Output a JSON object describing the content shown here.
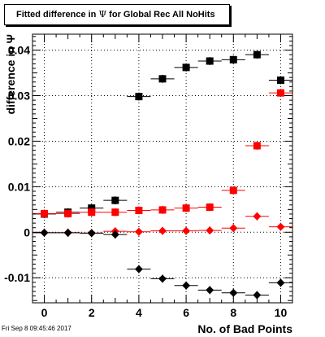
{
  "title": {
    "prefix": "Fitted difference in ",
    "symbol": "Ψ",
    "suffix": "  for Global Rec All NoHits"
  },
  "timestamp": "Fri Sep  8 09:45:46 2017",
  "chart_data": {
    "type": "scatter",
    "title": "Fitted difference in Ψ  for Global Rec All NoHits",
    "xlabel": "No. of Bad Points",
    "ylabel": "difference in Ψ",
    "xlim": [
      -0.5,
      10.5
    ],
    "ylim": [
      -0.0155,
      0.0435
    ],
    "grid": true,
    "legend": "none",
    "x_ticks": [
      0,
      2,
      4,
      6,
      8,
      10
    ],
    "x_tick_labels": [
      "0",
      "2",
      "4",
      "6",
      "8",
      "10"
    ],
    "y_ticks": [
      -0.01,
      0,
      0.01,
      0.02,
      0.03,
      0.04
    ],
    "y_tick_labels": [
      "-0.01",
      "0",
      "0.01",
      "0.02",
      "0.03",
      "0.04"
    ],
    "series": [
      {
        "marker": "square",
        "color": "#000000",
        "x": [
          0,
          1,
          2,
          3,
          4,
          5,
          6,
          7,
          8,
          9,
          10
        ],
        "y": [
          0.004,
          0.0044,
          0.0053,
          0.007,
          0.0298,
          0.0337,
          0.0362,
          0.0376,
          0.0379,
          0.039,
          0.0334
        ]
      },
      {
        "marker": "square",
        "color": "#ff0000",
        "x": [
          0,
          1,
          2,
          3,
          4,
          5,
          6,
          7,
          8,
          9,
          10
        ],
        "y": [
          0.0041,
          0.0041,
          0.0044,
          0.0044,
          0.0048,
          0.0049,
          0.0053,
          0.0055,
          0.0092,
          0.019,
          0.0306
        ]
      },
      {
        "marker": "diamond",
        "color": "#ff0000",
        "x": [
          0,
          1,
          2,
          3,
          4,
          5,
          6,
          7,
          8,
          9,
          10
        ],
        "y": [
          -0.0001,
          -0.0001,
          -0.0002,
          0.0002,
          0.0001,
          0.0003,
          0.0003,
          0.0004,
          0.0009,
          0.0035,
          0.0012
        ]
      },
      {
        "marker": "diamond",
        "color": "#000000",
        "x": [
          0,
          1,
          2,
          3,
          4,
          5,
          6,
          7,
          8,
          9,
          10
        ],
        "y": [
          -0.0001,
          -0.0001,
          -0.0002,
          -0.0005,
          -0.0081,
          -0.0102,
          -0.0117,
          -0.0127,
          -0.0133,
          -0.0138,
          -0.0111
        ]
      }
    ]
  }
}
